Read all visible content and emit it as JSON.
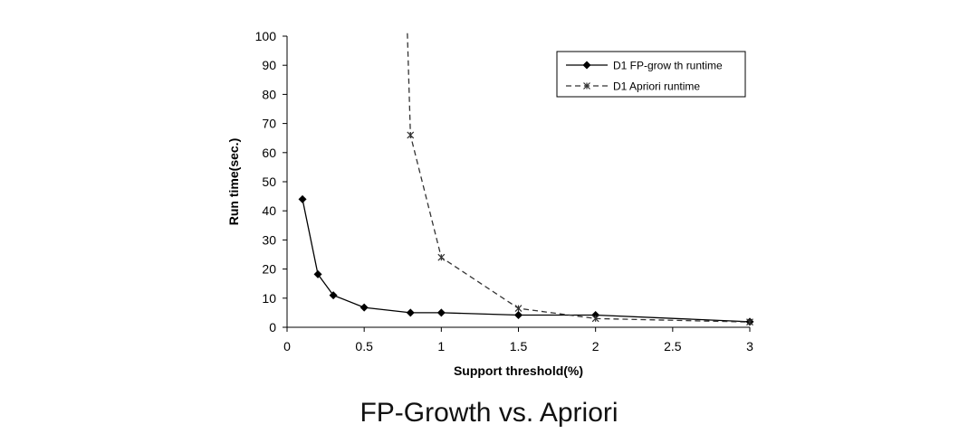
{
  "caption": "FP-Growth vs. Apriori",
  "chart_data": {
    "type": "line",
    "title": "",
    "xlabel": "Support threshold(%)",
    "ylabel": "Run time(sec.)",
    "xlim": [
      0,
      3
    ],
    "ylim": [
      0,
      100
    ],
    "xticks": [
      "0",
      "0.5",
      "1",
      "1.5",
      "2",
      "2.5",
      "3"
    ],
    "yticks": [
      "0",
      "10",
      "20",
      "30",
      "40",
      "50",
      "60",
      "70",
      "80",
      "90",
      "100"
    ],
    "grid": false,
    "legend_position": "top-right",
    "series": [
      {
        "name": "D1 FP-grow th runtime",
        "marker": "diamond",
        "line_style": "solid",
        "color": "#000000",
        "points": [
          [
            0.1,
            44
          ],
          [
            0.2,
            18.2
          ],
          [
            0.3,
            11
          ],
          [
            0.5,
            6.8
          ],
          [
            0.8,
            5
          ],
          [
            1,
            5
          ],
          [
            1.5,
            4.2
          ],
          [
            2,
            4.2
          ],
          [
            3,
            1.9
          ]
        ]
      },
      {
        "name": "D1 Apriori runtime",
        "marker": "asterisk",
        "line_style": "dashed",
        "color": "#333333",
        "points": [
          [
            0.78,
            101
          ],
          [
            0.8,
            66
          ],
          [
            1,
            24
          ],
          [
            1.5,
            6.5
          ],
          [
            2,
            3
          ],
          [
            3,
            1.8
          ]
        ]
      }
    ]
  }
}
